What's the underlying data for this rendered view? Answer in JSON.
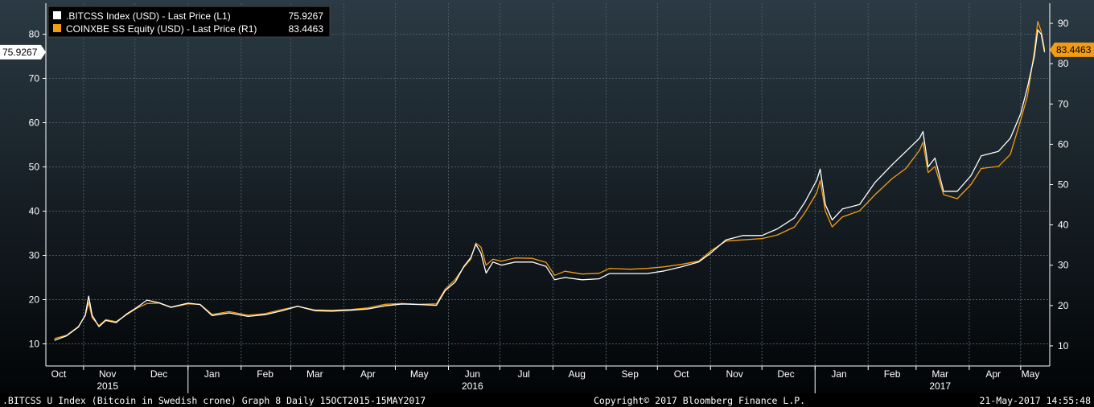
{
  "chart_data": {
    "type": "line",
    "left_axis": {
      "min": 5,
      "max": 87,
      "ticks": [
        10,
        20,
        30,
        40,
        50,
        60,
        70,
        80
      ]
    },
    "right_axis": {
      "min": 5,
      "max": 95,
      "ticks": [
        10,
        20,
        30,
        40,
        50,
        60,
        70,
        80,
        90
      ]
    },
    "x_axis": {
      "months": [
        "Oct",
        "Nov",
        "Dec",
        "Jan",
        "Feb",
        "Mar",
        "Apr",
        "May",
        "Jun",
        "Jul",
        "Aug",
        "Sep",
        "Oct",
        "Nov",
        "Dec",
        "Jan",
        "Feb",
        "Mar",
        "Apr",
        "May"
      ],
      "years": [
        {
          "label": "2015",
          "month_index": 1
        },
        {
          "label": "2016",
          "month_index": 8
        },
        {
          "label": "2017",
          "month_index": 17
        }
      ]
    },
    "series": [
      {
        "name": ".BITCSS Index (USD) - Last Price (L1)",
        "last_value": "75.9267",
        "color": "#ffffff",
        "axis": "left",
        "points": [
          [
            "2015-10-15",
            10.8
          ],
          [
            "2015-10-22",
            11.8
          ],
          [
            "2015-10-29",
            13.8
          ],
          [
            "2015-11-02",
            16.5
          ],
          [
            "2015-11-04",
            20.8
          ],
          [
            "2015-11-06",
            16.5
          ],
          [
            "2015-11-10",
            13.9
          ],
          [
            "2015-11-14",
            15.3
          ],
          [
            "2015-11-20",
            14.8
          ],
          [
            "2015-11-26",
            16.7
          ],
          [
            "2015-12-02",
            18.2
          ],
          [
            "2015-12-08",
            19.9
          ],
          [
            "2015-12-15",
            19.3
          ],
          [
            "2015-12-22",
            18.3
          ],
          [
            "2016-01-01",
            19.2
          ],
          [
            "2016-01-08",
            18.9
          ],
          [
            "2016-01-15",
            16.4
          ],
          [
            "2016-01-25",
            17.0
          ],
          [
            "2016-02-05",
            16.2
          ],
          [
            "2016-02-15",
            16.6
          ],
          [
            "2016-02-25",
            17.5
          ],
          [
            "2016-03-05",
            18.5
          ],
          [
            "2016-03-15",
            17.5
          ],
          [
            "2016-03-25",
            17.4
          ],
          [
            "2016-04-05",
            17.6
          ],
          [
            "2016-04-15",
            17.9
          ],
          [
            "2016-04-25",
            18.6
          ],
          [
            "2016-05-05",
            19.0
          ],
          [
            "2016-05-15",
            18.9
          ],
          [
            "2016-05-25",
            18.7
          ],
          [
            "2016-05-30",
            22.0
          ],
          [
            "2016-06-05",
            24.0
          ],
          [
            "2016-06-10",
            27.5
          ],
          [
            "2016-06-14",
            29.5
          ],
          [
            "2016-06-17",
            32.5
          ],
          [
            "2016-06-20",
            30.5
          ],
          [
            "2016-06-23",
            26.0
          ],
          [
            "2016-06-27",
            28.5
          ],
          [
            "2016-07-02",
            27.8
          ],
          [
            "2016-07-10",
            28.5
          ],
          [
            "2016-07-20",
            28.5
          ],
          [
            "2016-07-28",
            27.5
          ],
          [
            "2016-08-02",
            24.5
          ],
          [
            "2016-08-08",
            25.0
          ],
          [
            "2016-08-18",
            24.5
          ],
          [
            "2016-08-28",
            24.7
          ],
          [
            "2016-09-03",
            25.9
          ],
          [
            "2016-09-15",
            25.9
          ],
          [
            "2016-09-25",
            25.9
          ],
          [
            "2016-10-05",
            26.5
          ],
          [
            "2016-10-15",
            27.4
          ],
          [
            "2016-10-25",
            28.5
          ],
          [
            "2016-11-01",
            30.5
          ],
          [
            "2016-11-10",
            33.5
          ],
          [
            "2016-11-20",
            34.5
          ],
          [
            "2016-12-01",
            34.5
          ],
          [
            "2016-12-10",
            36.0
          ],
          [
            "2016-12-20",
            38.5
          ],
          [
            "2016-12-26",
            42.0
          ],
          [
            "2017-01-02",
            47.0
          ],
          [
            "2017-01-04",
            49.5
          ],
          [
            "2017-01-07",
            41.5
          ],
          [
            "2017-01-11",
            38.0
          ],
          [
            "2017-01-17",
            40.5
          ],
          [
            "2017-01-27",
            41.5
          ],
          [
            "2017-02-05",
            46.5
          ],
          [
            "2017-02-15",
            50.5
          ],
          [
            "2017-02-23",
            53.5
          ],
          [
            "2017-03-03",
            56.5
          ],
          [
            "2017-03-05",
            58.0
          ],
          [
            "2017-03-08",
            50.0
          ],
          [
            "2017-03-12",
            52.0
          ],
          [
            "2017-03-17",
            44.5
          ],
          [
            "2017-03-25",
            44.5
          ],
          [
            "2017-04-02",
            48.0
          ],
          [
            "2017-04-08",
            52.5
          ],
          [
            "2017-04-18",
            53.5
          ],
          [
            "2017-04-25",
            56.5
          ],
          [
            "2017-05-01",
            62.0
          ],
          [
            "2017-05-05",
            68.0
          ],
          [
            "2017-05-09",
            75.0
          ],
          [
            "2017-05-11",
            81.0
          ],
          [
            "2017-05-13",
            80.0
          ],
          [
            "2017-05-15",
            75.9267
          ]
        ]
      },
      {
        "name": "COINXBE SS Equity (USD) - Last Price (R1)",
        "last_value": "83.4463",
        "color": "#f39c12",
        "axis": "right",
        "points": [
          [
            "2015-10-15",
            11.8
          ],
          [
            "2015-10-22",
            12.6
          ],
          [
            "2015-10-29",
            14.8
          ],
          [
            "2015-11-02",
            17.5
          ],
          [
            "2015-11-04",
            20.8
          ],
          [
            "2015-11-06",
            17.0
          ],
          [
            "2015-11-10",
            15.0
          ],
          [
            "2015-11-14",
            16.5
          ],
          [
            "2015-11-20",
            16.0
          ],
          [
            "2015-11-26",
            17.7
          ],
          [
            "2015-12-02",
            19.3
          ],
          [
            "2015-12-08",
            20.5
          ],
          [
            "2015-12-15",
            20.6
          ],
          [
            "2015-12-22",
            19.5
          ],
          [
            "2016-01-01",
            20.4
          ],
          [
            "2016-01-08",
            20.3
          ],
          [
            "2016-01-15",
            17.8
          ],
          [
            "2016-01-25",
            18.5
          ],
          [
            "2016-02-05",
            17.6
          ],
          [
            "2016-02-15",
            18.0
          ],
          [
            "2016-02-25",
            19.0
          ],
          [
            "2016-03-05",
            19.8
          ],
          [
            "2016-03-15",
            18.9
          ],
          [
            "2016-03-25",
            18.8
          ],
          [
            "2016-04-05",
            19.0
          ],
          [
            "2016-04-15",
            19.4
          ],
          [
            "2016-04-25",
            20.3
          ],
          [
            "2016-05-05",
            20.5
          ],
          [
            "2016-05-15",
            20.3
          ],
          [
            "2016-05-25",
            20.4
          ],
          [
            "2016-05-30",
            24.0
          ],
          [
            "2016-06-05",
            26.5
          ],
          [
            "2016-06-10",
            29.5
          ],
          [
            "2016-06-14",
            31.5
          ],
          [
            "2016-06-17",
            35.5
          ],
          [
            "2016-06-20",
            34.5
          ],
          [
            "2016-06-23",
            30.0
          ],
          [
            "2016-06-27",
            31.5
          ],
          [
            "2016-07-02",
            31.0
          ],
          [
            "2016-07-10",
            31.8
          ],
          [
            "2016-07-20",
            31.7
          ],
          [
            "2016-07-28",
            30.7
          ],
          [
            "2016-08-02",
            27.5
          ],
          [
            "2016-08-08",
            28.5
          ],
          [
            "2016-08-18",
            27.8
          ],
          [
            "2016-08-28",
            28.0
          ],
          [
            "2016-09-03",
            29.2
          ],
          [
            "2016-09-15",
            29.0
          ],
          [
            "2016-09-25",
            29.2
          ],
          [
            "2016-10-05",
            29.6
          ],
          [
            "2016-10-15",
            30.2
          ],
          [
            "2016-10-25",
            31.0
          ],
          [
            "2016-11-01",
            33.5
          ],
          [
            "2016-11-10",
            36.0
          ],
          [
            "2016-11-20",
            36.3
          ],
          [
            "2016-12-01",
            36.6
          ],
          [
            "2016-12-10",
            37.5
          ],
          [
            "2016-12-20",
            39.5
          ],
          [
            "2016-12-26",
            43.0
          ],
          [
            "2017-01-02",
            48.0
          ],
          [
            "2017-01-04",
            51.0
          ],
          [
            "2017-01-07",
            43.5
          ],
          [
            "2017-01-11",
            39.5
          ],
          [
            "2017-01-17",
            42.0
          ],
          [
            "2017-01-27",
            43.5
          ],
          [
            "2017-02-05",
            47.5
          ],
          [
            "2017-02-15",
            51.5
          ],
          [
            "2017-02-23",
            54.0
          ],
          [
            "2017-03-03",
            58.5
          ],
          [
            "2017-03-05",
            60.5
          ],
          [
            "2017-03-08",
            53.0
          ],
          [
            "2017-03-12",
            54.5
          ],
          [
            "2017-03-17",
            47.5
          ],
          [
            "2017-03-25",
            46.5
          ],
          [
            "2017-04-02",
            50.0
          ],
          [
            "2017-04-08",
            54.0
          ],
          [
            "2017-04-18",
            54.5
          ],
          [
            "2017-04-25",
            57.5
          ],
          [
            "2017-05-01",
            66.0
          ],
          [
            "2017-05-05",
            72.0
          ],
          [
            "2017-05-09",
            83.0
          ],
          [
            "2017-05-11",
            90.5
          ],
          [
            "2017-05-13",
            88.0
          ],
          [
            "2017-05-15",
            83.4463
          ]
        ]
      }
    ],
    "grid": true,
    "legend_position": "top-left"
  },
  "footer": {
    "description": ".BITCSS U Index (Bitcoin in Swedish crone) Graph 8  Daily 15OCT2015-15MAY2017",
    "copyright": "Copyright© 2017 Bloomberg Finance L.P.",
    "timestamp": "21-May-2017 14:55:48"
  },
  "colors": {
    "background_top": "#2b3a44",
    "background_bottom": "#020406",
    "grid": "#4c5963",
    "text": "#ffffff",
    "accent_orange": "#f39c12"
  }
}
